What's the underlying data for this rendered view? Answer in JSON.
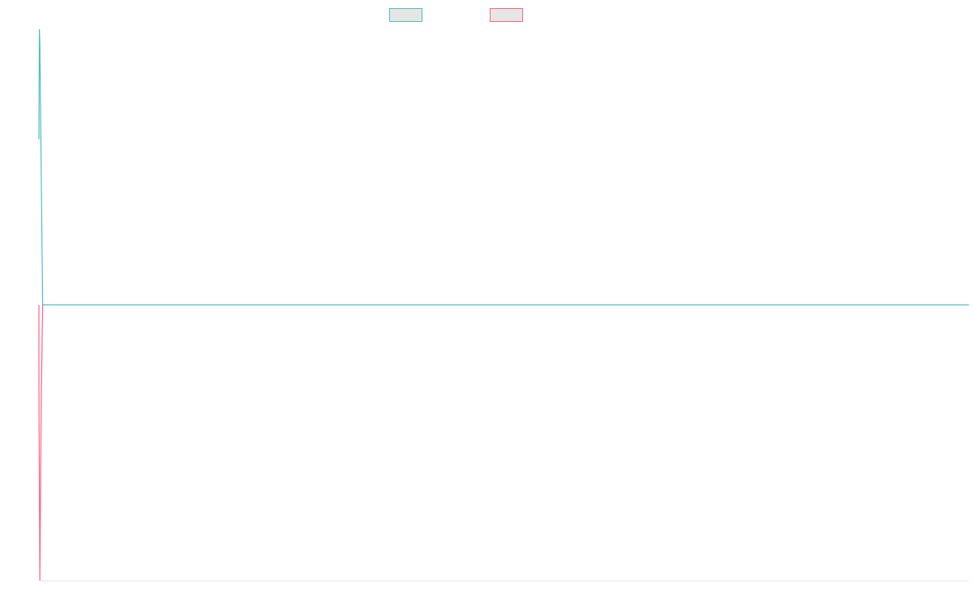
{
  "chart_data": {
    "type": "line",
    "title": "",
    "xlabel": "",
    "ylabel": "",
    "grid": false,
    "legend": {
      "placement": "top-center"
    },
    "series": [
      {
        "name": "",
        "color": "#4bc0c0",
        "fill": "#e6e6e6",
        "points": [
          {
            "x": 0.0,
            "y": 0.6
          },
          {
            "x": 0.5,
            "y": 1.0
          },
          {
            "x": 1.0,
            "y": 0.95
          },
          {
            "x": 4.0,
            "y": 0.0
          },
          {
            "x": 5.0,
            "y": 0.0
          },
          {
            "x": 1000.0,
            "y": 0.0
          }
        ]
      },
      {
        "name": "",
        "color": "#ff6384",
        "fill": "#e6e6e6",
        "points": [
          {
            "x": 0.0,
            "y": 0.0
          },
          {
            "x": 0.0,
            "y": -0.3
          },
          {
            "x": 1.0,
            "y": -1.0
          },
          {
            "x": 2.5,
            "y": -0.35
          },
          {
            "x": 4.0,
            "y": 0.0
          }
        ]
      }
    ],
    "xlim": [
      0,
      1000
    ],
    "ylim": [
      -1,
      1
    ]
  }
}
